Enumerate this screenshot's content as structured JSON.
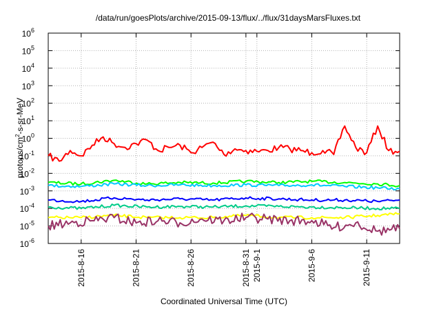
{
  "chart_data": {
    "type": "line",
    "title": "/data/run/goesPlots/archive/2015-09-13/flux/../flux/31daysMarsFluxes.txt",
    "xlabel": "Coordinated Universal Time (UTC)",
    "ylabel": {
      "main": "protons/cm",
      "sup": "2",
      "rest": "-s-sr-MeV"
    },
    "yscale": "log",
    "ylim": [
      1e-06,
      1000000.0
    ],
    "xlim": [
      "2015-08-13",
      "2015-09-14"
    ],
    "grid": true,
    "y_ticks": [
      {
        "base": "10",
        "exp": "-6",
        "value": 1e-06
      },
      {
        "base": "10",
        "exp": "-5",
        "value": 1e-05
      },
      {
        "base": "10",
        "exp": "-4",
        "value": 0.0001
      },
      {
        "base": "10",
        "exp": "-3",
        "value": 0.001
      },
      {
        "base": "10",
        "exp": "-2",
        "value": 0.01
      },
      {
        "base": "10",
        "exp": "-1",
        "value": 0.1
      },
      {
        "base": "10",
        "exp": "0",
        "value": 1
      },
      {
        "base": "10",
        "exp": "1",
        "value": 10
      },
      {
        "base": "10",
        "exp": "2",
        "value": 100
      },
      {
        "base": "10",
        "exp": "3",
        "value": 1000
      },
      {
        "base": "10",
        "exp": "4",
        "value": 10000
      },
      {
        "base": "10",
        "exp": "5",
        "value": 100000
      },
      {
        "base": "10",
        "exp": "6",
        "value": 1000000
      }
    ],
    "x_ticks": [
      {
        "date": "2015-08-16",
        "label": "2015-8-16"
      },
      {
        "date": "2015-08-21",
        "label": "2015-8-21"
      },
      {
        "date": "2015-08-26",
        "label": "2015-8-26"
      },
      {
        "date": "2015-08-31",
        "label": "2015-8-31"
      },
      {
        "date": "2015-09-01",
        "label": "2015-9-1"
      },
      {
        "date": "2015-09-06",
        "label": "2015-9-6"
      },
      {
        "date": "2015-09-11",
        "label": "2015-9-11"
      }
    ],
    "series": [
      {
        "color": "#ff0000",
        "x": [
          "2015-08-13",
          "2015-08-14",
          "2015-08-15",
          "2015-08-16",
          "2015-08-17",
          "2015-08-18",
          "2015-08-19",
          "2015-08-20",
          "2015-08-21",
          "2015-08-22",
          "2015-08-23",
          "2015-08-24",
          "2015-08-25",
          "2015-08-26",
          "2015-08-27",
          "2015-08-28",
          "2015-08-29",
          "2015-08-30",
          "2015-08-31",
          "2015-09-01",
          "2015-09-02",
          "2015-09-03",
          "2015-09-04",
          "2015-09-05",
          "2015-09-06",
          "2015-09-07",
          "2015-09-08",
          "2015-09-09",
          "2015-09-10",
          "2015-09-11",
          "2015-09-12",
          "2015-09-13",
          "2015-09-14"
        ],
        "y": [
          0.1,
          0.05,
          0.2,
          0.1,
          0.4,
          1.2,
          0.5,
          0.3,
          0.5,
          0.8,
          0.2,
          0.3,
          0.4,
          0.15,
          0.3,
          0.6,
          0.12,
          0.25,
          0.2,
          0.18,
          0.2,
          0.3,
          0.25,
          0.2,
          0.15,
          0.2,
          0.12,
          5.0,
          0.3,
          0.15,
          5.0,
          0.2,
          0.18
        ]
      },
      {
        "color": "#00ff00",
        "x": [
          "2015-08-13",
          "2015-08-16",
          "2015-08-19",
          "2015-08-22",
          "2015-08-25",
          "2015-08-28",
          "2015-08-31",
          "2015-09-03",
          "2015-09-06",
          "2015-09-09",
          "2015-09-12",
          "2015-09-14"
        ],
        "y": [
          0.003,
          0.0025,
          0.004,
          0.0025,
          0.003,
          0.0028,
          0.0035,
          0.003,
          0.0035,
          0.003,
          0.0025,
          0.002
        ]
      },
      {
        "color": "#00c8ff",
        "x": [
          "2015-08-13",
          "2015-08-16",
          "2015-08-19",
          "2015-08-22",
          "2015-08-25",
          "2015-08-28",
          "2015-08-31",
          "2015-09-03",
          "2015-09-06",
          "2015-09-09",
          "2015-09-12",
          "2015-09-14"
        ],
        "y": [
          0.002,
          0.0018,
          0.0025,
          0.002,
          0.0022,
          0.002,
          0.0022,
          0.002,
          0.0022,
          0.0018,
          0.0015,
          0.0013
        ]
      },
      {
        "color": "#0000ff",
        "x": [
          "2015-08-13",
          "2015-08-16",
          "2015-08-19",
          "2015-08-22",
          "2015-08-25",
          "2015-08-28",
          "2015-08-31",
          "2015-09-03",
          "2015-09-06",
          "2015-09-09",
          "2015-09-12",
          "2015-09-14"
        ],
        "y": [
          0.0003,
          0.00025,
          0.0004,
          0.0003,
          0.00035,
          0.0003,
          0.0004,
          0.00035,
          0.0003,
          0.0003,
          0.00025,
          0.0003
        ]
      },
      {
        "color": "#00cc88",
        "x": [
          "2015-08-13",
          "2015-08-16",
          "2015-08-19",
          "2015-08-22",
          "2015-08-25",
          "2015-08-28",
          "2015-08-31",
          "2015-09-03",
          "2015-09-06",
          "2015-09-09",
          "2015-09-12",
          "2015-09-14"
        ],
        "y": [
          0.00012,
          0.0001,
          0.00015,
          0.00012,
          0.00013,
          0.00012,
          0.00014,
          0.00013,
          0.00012,
          0.00011,
          0.0001,
          0.0001
        ]
      },
      {
        "color": "#ffff00",
        "x": [
          "2015-08-13",
          "2015-08-16",
          "2015-08-19",
          "2015-08-22",
          "2015-08-25",
          "2015-08-28",
          "2015-08-31",
          "2015-09-03",
          "2015-09-06",
          "2015-09-09",
          "2015-09-12",
          "2015-09-14"
        ],
        "y": [
          3e-05,
          3e-05,
          4e-05,
          3e-05,
          3e-05,
          3e-05,
          4e-05,
          3e-05,
          3e-05,
          3e-05,
          4e-05,
          5e-05
        ]
      },
      {
        "color": "#993366",
        "x": [
          "2015-08-13",
          "2015-08-15",
          "2015-08-17",
          "2015-08-19",
          "2015-08-21",
          "2015-08-23",
          "2015-08-25",
          "2015-08-27",
          "2015-08-29",
          "2015-08-31",
          "2015-09-02",
          "2015-09-04",
          "2015-09-06",
          "2015-09-08",
          "2015-09-10",
          "2015-09-12",
          "2015-09-14"
        ],
        "y": [
          1e-05,
          1.5e-05,
          2e-05,
          3e-05,
          1.5e-05,
          2e-05,
          1.5e-05,
          2.5e-05,
          2e-05,
          3e-05,
          2.5e-05,
          2e-05,
          2e-05,
          8e-06,
          1.5e-05,
          5e-06,
          7e-06
        ]
      }
    ]
  }
}
